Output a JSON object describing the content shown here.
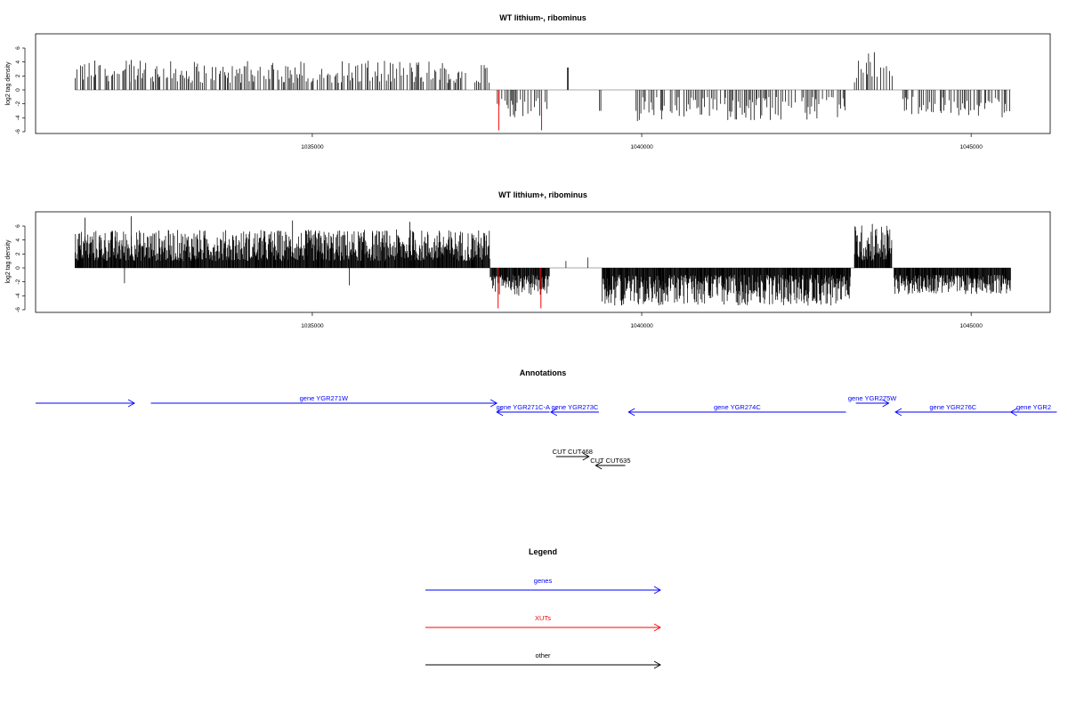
{
  "chart_data": [
    {
      "type": "bar",
      "title": "WT lithium-, ribominus",
      "ylabel": "log2 tag density",
      "xlim": [
        1030800,
        1046200
      ],
      "ylim": [
        -6,
        8
      ],
      "yticks": [
        -6,
        -4,
        -2,
        0,
        2,
        4,
        6
      ],
      "yticklabels": [
        "-6",
        "-4",
        "-2",
        "0",
        "2",
        "4",
        "6"
      ],
      "xticks": [
        1035000,
        1040000,
        1045000
      ],
      "xticklabels": [
        "1035000",
        "1040000",
        "1045000"
      ],
      "baseline": [
        1031400,
        1045600
      ],
      "red_bars": [
        {
          "x": 1037830,
          "y": -5.8
        },
        {
          "x": 1038480,
          "y": -5.8
        }
      ],
      "density": "sparse",
      "segments": [
        {
          "from": 1031400,
          "to": 1037700,
          "min": 1.0,
          "max": 4.2,
          "sign": 1,
          "spikes": [
            {
              "x": 1031700,
              "y": 4.2
            },
            {
              "x": 1032250,
              "y": 4.3
            }
          ]
        },
        {
          "from": 1038870,
          "to": 1038890,
          "min": 3.2,
          "max": 3.2,
          "sign": 1
        },
        {
          "from": 1037780,
          "to": 1038600,
          "min": 1.0,
          "max": 4.0,
          "sign": -1
        },
        {
          "from": 1039360,
          "to": 1039390,
          "min": 3.0,
          "max": 3.0,
          "sign": -1
        },
        {
          "from": 1039900,
          "to": 1043100,
          "min": 1.0,
          "max": 4.5,
          "sign": -1
        },
        {
          "from": 1043230,
          "to": 1043780,
          "min": 1.0,
          "max": 5.4,
          "sign": 1,
          "spikes": [
            {
              "x": 1043530,
              "y": 5.4
            }
          ]
        },
        {
          "from": 1043800,
          "to": 1043830,
          "min": 2.0,
          "max": 2.0,
          "sign": 1
        },
        {
          "from": 1043950,
          "to": 1045600,
          "min": 1.0,
          "max": 4.0,
          "sign": -1
        }
      ]
    },
    {
      "type": "bar",
      "title": "WT lithium+, ribominus",
      "ylabel": "log2 tag density",
      "xlim": [
        1030800,
        1046200
      ],
      "ylim": [
        -6,
        8
      ],
      "yticks": [
        -6,
        -4,
        -2,
        0,
        2,
        4,
        6
      ],
      "yticklabels": [
        "-6",
        "-4",
        "-2",
        "0",
        "2",
        "4",
        "6"
      ],
      "xticks": [
        1035000,
        1040000,
        1045000
      ],
      "xticklabels": [
        "1035000",
        "1040000",
        "1045000"
      ],
      "baseline": [
        1031400,
        1045600
      ],
      "red_bars": [
        {
          "x": 1037820,
          "y": -5.8
        },
        {
          "x": 1038470,
          "y": -5.8
        }
      ],
      "density": "dense",
      "segments": [
        {
          "from": 1031400,
          "to": 1037700,
          "min": 1.0,
          "max": 5.5,
          "sign": 1,
          "spikes": [
            {
              "x": 1031550,
              "y": 7.2
            },
            {
              "x": 1032250,
              "y": 7.4
            },
            {
              "x": 1034700,
              "y": 6.8
            },
            {
              "x": 1036480,
              "y": 6.6
            }
          ]
        },
        {
          "from": 1032150,
          "to": 1032170,
          "min": 2.2,
          "max": 2.2,
          "sign": -1
        },
        {
          "from": 1035560,
          "to": 1035580,
          "min": 2.5,
          "max": 2.5,
          "sign": -1
        },
        {
          "from": 1037700,
          "to": 1038600,
          "min": 1.0,
          "max": 4.0,
          "sign": -1
        },
        {
          "from": 1038850,
          "to": 1038870,
          "min": 1.0,
          "max": 1.0,
          "sign": 1
        },
        {
          "from": 1039180,
          "to": 1039200,
          "min": 1.5,
          "max": 1.5,
          "sign": 1
        },
        {
          "from": 1039400,
          "to": 1043170,
          "min": 1.0,
          "max": 5.4,
          "sign": -1
        },
        {
          "from": 1043230,
          "to": 1043800,
          "min": 1.0,
          "max": 6.3,
          "sign": 1,
          "spikes": [
            {
              "x": 1043500,
              "y": 6.3
            }
          ]
        },
        {
          "from": 1043830,
          "to": 1045600,
          "min": 1.0,
          "max": 3.8,
          "sign": -1
        }
      ]
    }
  ],
  "annotations": {
    "title": "Annotations",
    "features": [
      {
        "label": "",
        "start": 1030800,
        "end": 1032300,
        "dir": "right",
        "row": 0,
        "kind": "gene"
      },
      {
        "label": "gene YGR271W",
        "start": 1032550,
        "end": 1037800,
        "dir": "right",
        "row": 0,
        "kind": "gene"
      },
      {
        "label": "gene YGR271C-A",
        "start": 1037800,
        "end": 1038600,
        "dir": "left",
        "row": 1,
        "kind": "gene"
      },
      {
        "label": "gene YGR273C",
        "start": 1038620,
        "end": 1039350,
        "dir": "left",
        "row": 1,
        "kind": "gene"
      },
      {
        "label": "gene YGR274C",
        "start": 1039800,
        "end": 1043100,
        "dir": "left",
        "row": 1,
        "kind": "gene"
      },
      {
        "label": "gene YGR275W",
        "start": 1043250,
        "end": 1043750,
        "dir": "right",
        "row": 0,
        "kind": "gene"
      },
      {
        "label": "gene YGR276C",
        "start": 1043850,
        "end": 1045600,
        "dir": "left",
        "row": 1,
        "kind": "gene"
      },
      {
        "label": "gene YGR2",
        "start": 1045600,
        "end": 1046300,
        "dir": "left",
        "row": 1,
        "kind": "gene"
      },
      {
        "label": "CUT CUT468",
        "start": 1038700,
        "end": 1039200,
        "dir": "right",
        "row": 6,
        "kind": "other"
      },
      {
        "label": "CUT CUT635",
        "start": 1039300,
        "end": 1039750,
        "dir": "left",
        "row": 7,
        "kind": "other"
      }
    ]
  },
  "legend": {
    "title": "Legend",
    "items": [
      {
        "label": "genes",
        "color": "#0000ff"
      },
      {
        "label": "XUTs",
        "color": "#ff0000"
      },
      {
        "label": "other",
        "color": "#000000"
      }
    ]
  },
  "colors": {
    "gene": "#0000ff",
    "xut": "#ff0000",
    "other": "#000000",
    "bar": "#000000",
    "highlight": "#ff0000"
  }
}
